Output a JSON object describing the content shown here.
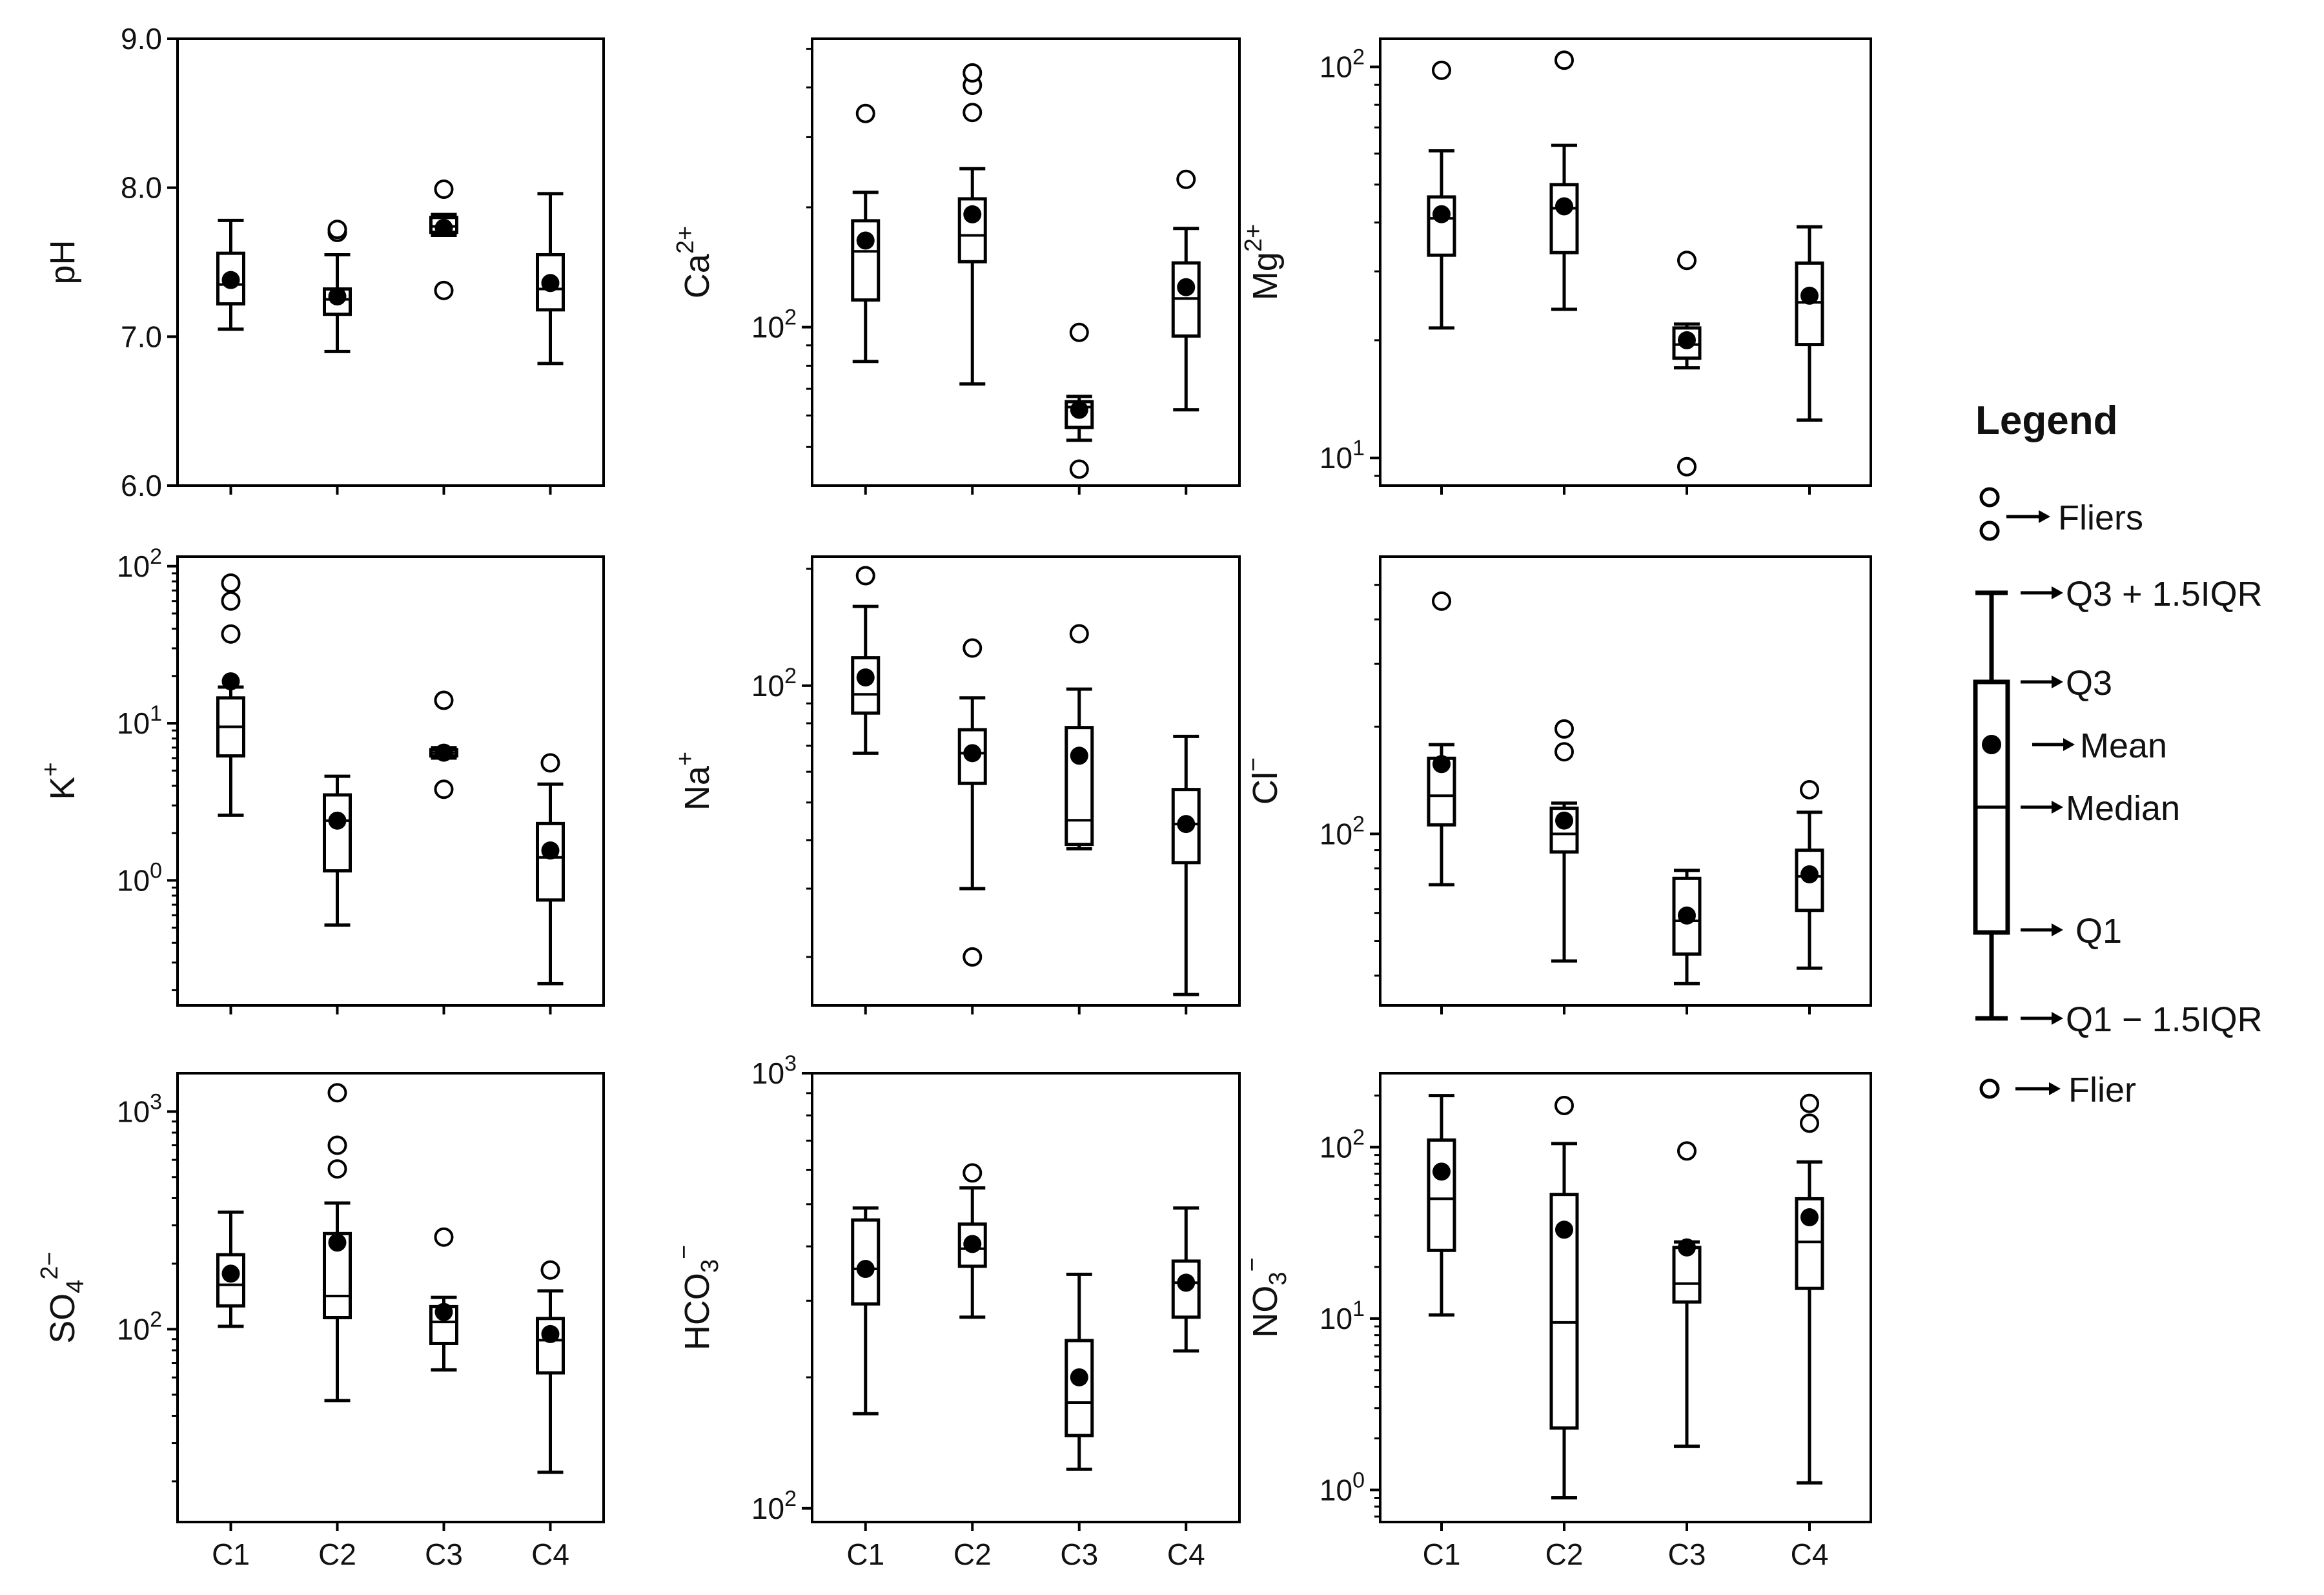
{
  "chart_data": [
    {
      "type": "box",
      "ylabel": "pH",
      "scale": "linear",
      "ylim": [
        6.0,
        9.0
      ],
      "yticks": [
        {
          "v": 6.0,
          "label": "6.0"
        },
        {
          "v": 7.0,
          "label": "7.0"
        },
        {
          "v": 8.0,
          "label": "8.0"
        },
        {
          "v": 9.0,
          "label": "9.0"
        }
      ],
      "categories": [
        "C1",
        "C2",
        "C3",
        "C4"
      ],
      "boxes": [
        {
          "low": 7.05,
          "q1": 7.22,
          "median": 7.35,
          "q3": 7.56,
          "high": 7.78,
          "mean": 7.38,
          "fliers": []
        },
        {
          "low": 6.9,
          "q1": 7.15,
          "median": 7.25,
          "q3": 7.32,
          "high": 7.55,
          "mean": 7.27,
          "fliers": [
            7.7,
            7.72
          ]
        },
        {
          "low": 7.68,
          "q1": 7.7,
          "median": 7.74,
          "q3": 7.8,
          "high": 7.82,
          "mean": 7.73,
          "fliers": [
            7.31,
            7.99
          ]
        },
        {
          "low": 6.82,
          "q1": 7.18,
          "median": 7.32,
          "q3": 7.55,
          "high": 7.96,
          "mean": 7.36,
          "fliers": []
        }
      ]
    },
    {
      "type": "box",
      "ylabel": "Ca²⁺",
      "ylabel_base": "Ca",
      "ylabel_sup": "2+",
      "scale": "log",
      "ylim": [
        40,
        530
      ],
      "yticks": [
        {
          "v": 100,
          "base": "10",
          "exp": "2"
        }
      ],
      "categories": [
        "C1",
        "C2",
        "C3",
        "C4"
      ],
      "boxes": [
        {
          "low": 82,
          "q1": 117,
          "median": 155,
          "q3": 185,
          "high": 218,
          "mean": 165,
          "fliers": [
            344
          ]
        },
        {
          "low": 72,
          "q1": 146,
          "median": 170,
          "q3": 210,
          "high": 250,
          "mean": 192,
          "fliers": [
            346,
            405,
            435
          ]
        },
        {
          "low": 52,
          "q1": 56,
          "median": 63,
          "q3": 65,
          "high": 67,
          "mean": 62,
          "fliers": [
            44,
            97
          ]
        },
        {
          "low": 62,
          "q1": 95,
          "median": 118,
          "q3": 145,
          "high": 177,
          "mean": 126,
          "fliers": [
            235
          ]
        }
      ]
    },
    {
      "type": "box",
      "ylabel": "Mg²⁺",
      "ylabel_base": "Mg",
      "ylabel_sup": "2+",
      "scale": "log",
      "ylim": [
        8.5,
        118
      ],
      "yticks": [
        {
          "v": 10,
          "base": "10",
          "exp": "1"
        },
        {
          "v": 100,
          "base": "10",
          "exp": "2"
        }
      ],
      "categories": [
        "C1",
        "C2",
        "C3",
        "C4"
      ],
      "boxes": [
        {
          "low": 21.5,
          "q1": 33,
          "median": 41,
          "q3": 46.5,
          "high": 61,
          "mean": 42,
          "fliers": [
            98
          ]
        },
        {
          "low": 24,
          "q1": 33.5,
          "median": 43.5,
          "q3": 50,
          "high": 63,
          "mean": 44,
          "fliers": [
            104
          ]
        },
        {
          "low": 17,
          "q1": 18,
          "median": 19.5,
          "q3": 21.5,
          "high": 22,
          "mean": 20,
          "fliers": [
            9.5,
            32
          ]
        },
        {
          "low": 12.5,
          "q1": 19.5,
          "median": 25,
          "q3": 31.5,
          "high": 39,
          "mean": 26,
          "fliers": []
        }
      ]
    },
    {
      "type": "box",
      "ylabel": "K⁺",
      "ylabel_base": "K",
      "ylabel_sup": "+",
      "scale": "log",
      "ylim": [
        0.16,
        115
      ],
      "yticks": [
        {
          "v": 1,
          "base": "10",
          "exp": "0"
        },
        {
          "v": 10,
          "base": "10",
          "exp": "1"
        },
        {
          "v": 100,
          "base": "10",
          "exp": "2"
        }
      ],
      "categories": [
        "C1",
        "C2",
        "C3",
        "C4"
      ],
      "boxes": [
        {
          "low": 2.6,
          "q1": 6.2,
          "median": 9.5,
          "q3": 14.5,
          "high": 17,
          "mean": 18.5,
          "fliers": [
            37,
            60,
            78
          ]
        },
        {
          "low": 0.52,
          "q1": 1.15,
          "median": 2.4,
          "q3": 3.5,
          "high": 4.6,
          "mean": 2.4,
          "fliers": []
        },
        {
          "low": 6,
          "q1": 6.2,
          "median": 6.5,
          "q3": 6.8,
          "high": 7,
          "mean": 6.5,
          "fliers": [
            3.8,
            14
          ]
        },
        {
          "low": 0.22,
          "q1": 0.75,
          "median": 1.4,
          "q3": 2.3,
          "high": 4.1,
          "mean": 1.55,
          "fliers": [
            5.6
          ]
        }
      ]
    },
    {
      "type": "box",
      "ylabel": "Na⁺",
      "ylabel_base": "Na",
      "ylabel_sup": "+",
      "scale": "log",
      "ylim": [
        15,
        215
      ],
      "yticks": [
        {
          "v": 100,
          "base": "10",
          "exp": "2"
        }
      ],
      "categories": [
        "C1",
        "C2",
        "C3",
        "C4"
      ],
      "boxes": [
        {
          "low": 67,
          "q1": 85,
          "median": 95,
          "q3": 118,
          "high": 160,
          "mean": 105,
          "fliers": [
            192
          ]
        },
        {
          "low": 30,
          "q1": 56,
          "median": 67,
          "q3": 77,
          "high": 93,
          "mean": 67,
          "fliers": [
            20,
            125
          ]
        },
        {
          "low": 38,
          "q1": 39,
          "median": 45,
          "q3": 78,
          "high": 98,
          "mean": 66,
          "fliers": [
            136
          ]
        },
        {
          "low": 16,
          "q1": 35,
          "median": 44,
          "q3": 54,
          "high": 74,
          "mean": 44,
          "fliers": []
        }
      ]
    },
    {
      "type": "box",
      "ylabel": "Cl⁻",
      "ylabel_base": "Cl",
      "ylabel_sup": "−",
      "scale": "log",
      "ylim": [
        33,
        600
      ],
      "yticks": [
        {
          "v": 100,
          "base": "10",
          "exp": "2"
        }
      ],
      "categories": [
        "C1",
        "C2",
        "C3",
        "C4"
      ],
      "boxes": [
        {
          "low": 72,
          "q1": 106,
          "median": 128,
          "q3": 163,
          "high": 178,
          "mean": 157,
          "fliers": [
            450
          ]
        },
        {
          "low": 44,
          "q1": 89,
          "median": 100,
          "q3": 118,
          "high": 122,
          "mean": 109,
          "fliers": [
            170,
            197
          ]
        },
        {
          "low": 38,
          "q1": 46,
          "median": 57,
          "q3": 75,
          "high": 79,
          "mean": 59,
          "fliers": []
        },
        {
          "low": 42,
          "q1": 61,
          "median": 76,
          "q3": 90,
          "high": 115,
          "mean": 77,
          "fliers": [
            133
          ]
        }
      ]
    },
    {
      "type": "box",
      "ylabel": "SO₄²⁻",
      "ylabel_base": "SO",
      "ylabel_sub": "4",
      "ylabel_sup": "2−",
      "scale": "log",
      "ylim": [
        13,
        1500
      ],
      "yticks": [
        {
          "v": 100,
          "base": "10",
          "exp": "2"
        },
        {
          "v": 1000,
          "base": "10",
          "exp": "3"
        }
      ],
      "categories": [
        "C1",
        "C2",
        "C3",
        "C4"
      ],
      "boxes": [
        {
          "low": 103,
          "q1": 128,
          "median": 160,
          "q3": 220,
          "high": 345,
          "mean": 180,
          "fliers": []
        },
        {
          "low": 47,
          "q1": 113,
          "median": 142,
          "q3": 275,
          "high": 380,
          "mean": 250,
          "fliers": [
            545,
            700,
            1220
          ]
        },
        {
          "low": 65,
          "q1": 86,
          "median": 108,
          "q3": 127,
          "high": 140,
          "mean": 120,
          "fliers": [
            265
          ]
        },
        {
          "low": 22,
          "q1": 63,
          "median": 89,
          "q3": 112,
          "high": 150,
          "mean": 95,
          "fliers": [
            187
          ]
        }
      ]
    },
    {
      "type": "box",
      "ylabel": "HCO₃⁻",
      "ylabel_base": "HCO",
      "ylabel_sub": "3",
      "ylabel_sup": "−",
      "scale": "log",
      "ylim": [
        93,
        1000
      ],
      "yticks": [
        {
          "v": 100,
          "base": "10",
          "exp": "2"
        },
        {
          "v": 1000,
          "base": "10",
          "exp": "3"
        }
      ],
      "categories": [
        "C1",
        "C2",
        "C3",
        "C4"
      ],
      "boxes": [
        {
          "low": 165,
          "q1": 295,
          "median": 355,
          "q3": 460,
          "high": 490,
          "mean": 355,
          "fliers": []
        },
        {
          "low": 275,
          "q1": 360,
          "median": 395,
          "q3": 450,
          "high": 545,
          "mean": 405,
          "fliers": [
            590
          ]
        },
        {
          "low": 123,
          "q1": 147,
          "median": 175,
          "q3": 243,
          "high": 345,
          "mean": 200,
          "fliers": []
        },
        {
          "low": 230,
          "q1": 275,
          "median": 330,
          "q3": 370,
          "high": 490,
          "mean": 330,
          "fliers": []
        }
      ]
    },
    {
      "type": "box",
      "ylabel": "NO₃⁻",
      "ylabel_base": "NO",
      "ylabel_sub": "3",
      "ylabel_sup": "−",
      "scale": "log",
      "ylim": [
        0.65,
        270
      ],
      "yticks": [
        {
          "v": 1,
          "base": "10",
          "exp": "0"
        },
        {
          "v": 10,
          "base": "10",
          "exp": "1"
        },
        {
          "v": 100,
          "base": "10",
          "exp": "2"
        }
      ],
      "categories": [
        "C1",
        "C2",
        "C3",
        "C4"
      ],
      "boxes": [
        {
          "low": 10.5,
          "q1": 25,
          "median": 50,
          "q3": 110,
          "high": 200,
          "mean": 72,
          "fliers": []
        },
        {
          "low": 0.9,
          "q1": 2.3,
          "median": 9.5,
          "q3": 53,
          "high": 105,
          "mean": 33,
          "fliers": [
            175
          ]
        },
        {
          "low": 1.8,
          "q1": 12.5,
          "median": 16,
          "q3": 26,
          "high": 28,
          "mean": 26,
          "fliers": [
            95
          ]
        },
        {
          "low": 1.1,
          "q1": 15,
          "median": 28,
          "q3": 50,
          "high": 82,
          "mean": 39,
          "fliers": [
            138,
            180
          ]
        }
      ]
    }
  ],
  "legend": {
    "title": "Legend",
    "fliers_label": "Fliers",
    "upper_whisker_label": "Q3 + 1.5IQR",
    "q3_label": "Q3",
    "mean_label": "Mean",
    "median_label": "Median",
    "q1_label": "Q1",
    "lower_whisker_label": "Q1 − 1.5IQR",
    "flier_label": "Flier"
  }
}
